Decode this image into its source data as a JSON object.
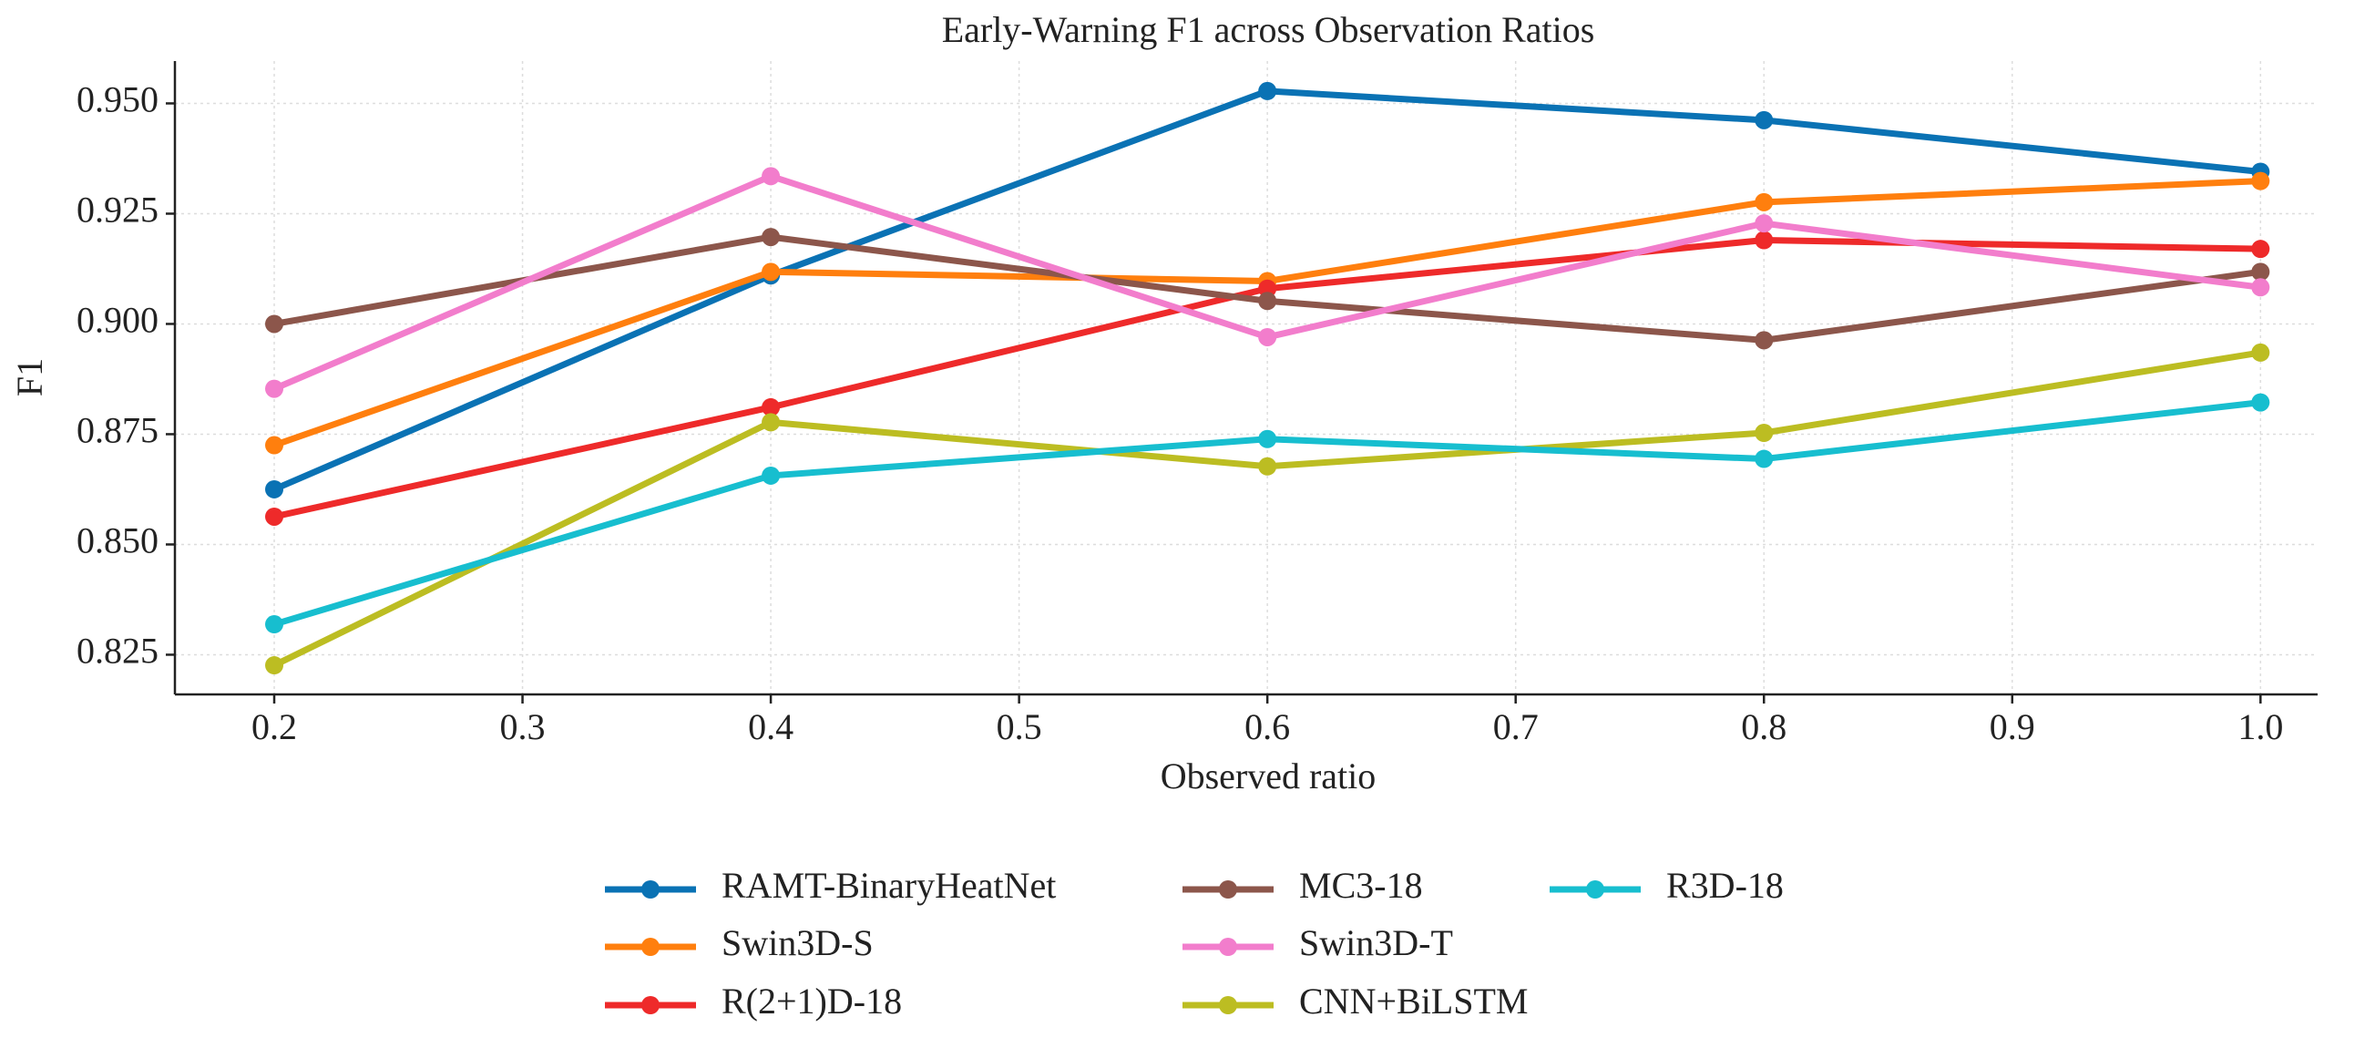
{
  "chart_data": {
    "type": "line",
    "title": "Early-Warning F1 across Observation Ratios",
    "x_label": "Observed ratio",
    "y_label": "F1",
    "x": [
      0.2,
      0.4,
      0.6,
      0.8,
      1.0
    ],
    "series": [
      {
        "name": "RAMT-BinaryHeatNet",
        "color": "#0a72b4",
        "values": [
          0.8625,
          0.911,
          0.9528,
          0.9462,
          0.9345
        ]
      },
      {
        "name": "Swin3D-S",
        "color": "#ff7f0e",
        "values": [
          0.8725,
          0.9118,
          0.9097,
          0.9276,
          0.9324
        ]
      },
      {
        "name": "R(2+1)D-18",
        "color": "#ee2a2a",
        "values": [
          0.8563,
          0.8811,
          0.908,
          0.919,
          0.917
        ]
      },
      {
        "name": "MC3-18",
        "color": "#8c564b",
        "values": [
          0.9,
          0.9197,
          0.9052,
          0.8963,
          0.9118
        ]
      },
      {
        "name": "Swin3D-T",
        "color": "#f27dcc",
        "values": [
          0.8853,
          0.9335,
          0.897,
          0.9228,
          0.9083
        ]
      },
      {
        "name": "CNN+BiLSTM",
        "color": "#bcbd22",
        "values": [
          0.8226,
          0.8777,
          0.8677,
          0.8753,
          0.8935
        ]
      },
      {
        "name": "R3D-18",
        "color": "#17becf",
        "values": [
          0.8319,
          0.8656,
          0.8739,
          0.8694,
          0.8822
        ]
      }
    ],
    "xlim": [
      0.16,
      1.023
    ],
    "ylim": [
      0.816,
      0.9596
    ],
    "xticks": [
      0.2,
      0.3,
      0.4,
      0.5,
      0.6,
      0.7,
      0.8,
      0.9,
      {
        "value": 1.0,
        "label": "1.0"
      }
    ],
    "yticks": [
      0.825,
      {
        "value": 0.85,
        "label": "0.850"
      },
      0.875,
      {
        "value": 0.9,
        "label": "0.900"
      },
      0.925,
      {
        "value": 0.95,
        "label": "0.950"
      }
    ],
    "grid": true,
    "legend": "lower center"
  }
}
